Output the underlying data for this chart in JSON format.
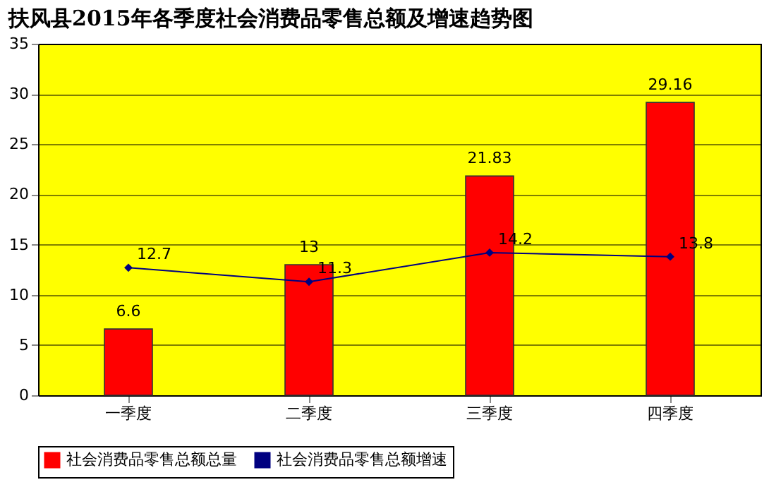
{
  "chart_data": {
    "type": "bar",
    "title": "扶风县2015年各季度社会消费品零售总额及增速趋势图",
    "categories": [
      "一季度",
      "二季度",
      "三季度",
      "四季度"
    ],
    "series": [
      {
        "name": "社会消费品零售总额总量",
        "color": "#ff0000",
        "values": [
          6.6,
          13,
          21.83,
          29.16
        ]
      },
      {
        "name": "社会消费品零售总额增速",
        "type": "line",
        "color": "#000080",
        "marker": "diamond",
        "values": [
          12.7,
          11.3,
          14.2,
          13.8
        ]
      }
    ],
    "ylim": [
      0,
      35
    ],
    "yticks": [
      0,
      5,
      10,
      15,
      20,
      25,
      30,
      35
    ],
    "grid": "y",
    "legend": "bottom",
    "data_labels": true
  }
}
